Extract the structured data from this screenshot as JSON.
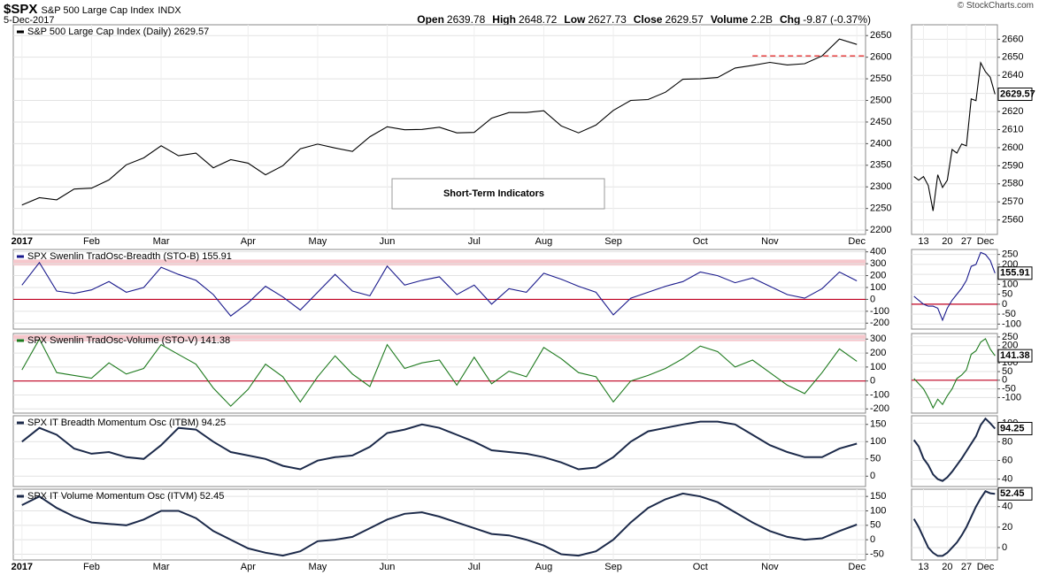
{
  "header": {
    "symbol": "$SPX",
    "name": "S&P 500 Large Cap Index",
    "exchange": "INDX",
    "date": "5-Dec-2017",
    "quote": [
      {
        "label": "Open",
        "value": 2639.78
      },
      {
        "label": "High",
        "value": 2648.72
      },
      {
        "label": "Low",
        "value": 2627.73
      },
      {
        "label": "Close",
        "value": 2629.57
      },
      {
        "label": "Volume",
        "value": "2.2B"
      },
      {
        "label": "Chg",
        "value": "-9.87 (-0.37%)"
      }
    ],
    "credit": "© StockCharts.com"
  },
  "chart_data": [
    {
      "type": "line",
      "title": "S&P 500 Large Cap Index (Daily) 2629.57",
      "annotation": "Short-Term Indicators",
      "color": "#000000",
      "categories": [
        "2017",
        null,
        null,
        null,
        "Feb",
        null,
        null,
        null,
        "Mar",
        null,
        null,
        null,
        null,
        "Apr",
        null,
        null,
        null,
        "May",
        null,
        null,
        null,
        "Jun",
        null,
        null,
        null,
        null,
        "Jul",
        null,
        null,
        null,
        "Aug",
        null,
        null,
        null,
        "Sep",
        null,
        null,
        null,
        null,
        "Oct",
        null,
        null,
        null,
        "Nov",
        null,
        null,
        null,
        null,
        "Dec"
      ],
      "values": [
        2258,
        2275,
        2270,
        2295,
        2297,
        2316,
        2351,
        2367,
        2395,
        2372,
        2378,
        2344,
        2363,
        2355,
        2328,
        2349,
        2388,
        2399,
        2390,
        2382,
        2416,
        2439,
        2432,
        2433,
        2438,
        2425,
        2426,
        2459,
        2472,
        2472,
        2476,
        2441,
        2425,
        2443,
        2477,
        2500,
        2502,
        2519,
        2549,
        2550,
        2553,
        2575,
        2581,
        2588,
        2582,
        2585,
        2603,
        2642,
        2629.57
      ],
      "ylim": [
        2190,
        2675
      ],
      "yticks": [
        2200,
        2250,
        2300,
        2350,
        2400,
        2450,
        2500,
        2550,
        2600,
        2650
      ],
      "grid": true,
      "hlines": [
        {
          "value": 2603,
          "color": "#dd0000",
          "dashed": true
        }
      ]
    },
    {
      "type": "line",
      "title": "SPX Swenlin TradOsc-Breadth (STO-B) 155.91",
      "color": "#1a1a8c",
      "values": [
        120,
        310,
        70,
        50,
        80,
        150,
        60,
        100,
        270,
        210,
        160,
        40,
        -140,
        -30,
        110,
        20,
        -90,
        60,
        210,
        70,
        30,
        280,
        120,
        160,
        190,
        40,
        120,
        -40,
        90,
        60,
        220,
        170,
        110,
        60,
        -130,
        10,
        60,
        110,
        150,
        230,
        200,
        140,
        180,
        110,
        40,
        10,
        90,
        230,
        155.91
      ],
      "ylim": [
        -250,
        420
      ],
      "yticks": [
        -200,
        -100,
        0,
        100,
        200,
        300,
        400
      ],
      "grid": true,
      "band": [
        285,
        335
      ],
      "hlines": [
        {
          "value": 0,
          "color": "#c00020",
          "dashed": false
        }
      ]
    },
    {
      "type": "line",
      "title": "SPX Swenlin TradOsc-Volume (STO-V) 141.38",
      "color": "#1e7a1e",
      "values": [
        80,
        300,
        60,
        40,
        20,
        130,
        50,
        90,
        260,
        190,
        120,
        -50,
        -180,
        -60,
        120,
        30,
        -150,
        30,
        180,
        50,
        -40,
        260,
        90,
        130,
        150,
        -30,
        170,
        -20,
        70,
        30,
        240,
        160,
        60,
        30,
        -150,
        0,
        40,
        90,
        160,
        250,
        210,
        100,
        150,
        60,
        -30,
        -90,
        60,
        230,
        141.38
      ],
      "ylim": [
        -230,
        340
      ],
      "yticks": [
        -200,
        -100,
        0,
        100,
        200,
        300
      ],
      "grid": true,
      "band": [
        285,
        330
      ],
      "hlines": [
        {
          "value": 0,
          "color": "#c00020",
          "dashed": false
        }
      ]
    },
    {
      "type": "line",
      "title": "SPX IT Breadth Momentum Osc (ITBM) 94.25",
      "color": "#1c2a4a",
      "values": [
        100,
        140,
        120,
        80,
        65,
        70,
        55,
        50,
        90,
        140,
        135,
        100,
        70,
        60,
        50,
        30,
        20,
        45,
        55,
        60,
        85,
        125,
        135,
        150,
        140,
        120,
        100,
        75,
        70,
        65,
        55,
        40,
        20,
        25,
        55,
        100,
        130,
        140,
        150,
        158,
        158,
        150,
        120,
        90,
        70,
        55,
        55,
        80,
        94.25
      ],
      "ylim": [
        -30,
        175
      ],
      "yticks": [
        0,
        50,
        100,
        150
      ],
      "grid": true
    },
    {
      "type": "line",
      "title": "SPX IT Volume Momentum Osc (ITVM) 52.45",
      "color": "#1c2a4a",
      "categories": [
        "2017",
        null,
        null,
        null,
        "Feb",
        null,
        null,
        null,
        "Mar",
        null,
        null,
        null,
        null,
        "Apr",
        null,
        null,
        null,
        "May",
        null,
        null,
        null,
        "Jun",
        null,
        null,
        null,
        null,
        "Jul",
        null,
        null,
        null,
        "Aug",
        null,
        null,
        null,
        "Sep",
        null,
        null,
        null,
        null,
        "Oct",
        null,
        null,
        null,
        "Nov",
        null,
        null,
        null,
        null,
        "Dec"
      ],
      "values": [
        120,
        150,
        110,
        80,
        60,
        55,
        50,
        70,
        100,
        100,
        75,
        30,
        0,
        -30,
        -45,
        -55,
        -40,
        -5,
        0,
        10,
        40,
        70,
        90,
        95,
        80,
        60,
        40,
        20,
        15,
        0,
        -20,
        -50,
        -55,
        -40,
        0,
        60,
        110,
        140,
        160,
        150,
        130,
        95,
        60,
        30,
        10,
        0,
        5,
        30,
        52.45
      ],
      "ylim": [
        -70,
        175
      ],
      "yticks": [
        -50,
        0,
        50,
        100,
        150
      ],
      "grid": true
    },
    {
      "type": "line",
      "color": "#000000",
      "last_tag": true,
      "categories": [
        null,
        null,
        "13",
        null,
        null,
        null,
        null,
        "20",
        null,
        null,
        null,
        "27",
        null,
        null,
        null,
        "Dec",
        null,
        null
      ],
      "values": [
        2584,
        2582,
        2584,
        2579,
        2565,
        2585,
        2578,
        2582,
        2599,
        2597,
        2602,
        2601,
        2627,
        2626,
        2647,
        2642,
        2639,
        2629.57
      ],
      "ylim": [
        2552,
        2668
      ],
      "yticks": [
        2560,
        2570,
        2580,
        2590,
        2600,
        2610,
        2620,
        2630,
        2640,
        2650,
        2660
      ],
      "grid": true
    },
    {
      "type": "line",
      "color": "#1a1a8c",
      "last_tag": true,
      "values": [
        40,
        20,
        0,
        -10,
        -10,
        -20,
        -80,
        -20,
        20,
        50,
        80,
        120,
        190,
        200,
        260,
        250,
        220,
        155.91
      ],
      "ylim": [
        -125,
        275
      ],
      "yticks": [
        -100,
        -50,
        0,
        50,
        100,
        150,
        200,
        250
      ],
      "grid": true,
      "hlines": [
        {
          "value": 0,
          "color": "#c00020",
          "dashed": false
        }
      ]
    },
    {
      "type": "line",
      "color": "#1e7a1e",
      "last_tag": true,
      "values": [
        10,
        -20,
        -50,
        -100,
        -160,
        -110,
        -140,
        -90,
        -50,
        10,
        30,
        60,
        150,
        170,
        220,
        240,
        180,
        141.38
      ],
      "ylim": [
        -190,
        270
      ],
      "yticks": [
        -100,
        -50,
        0,
        50,
        100,
        150,
        200,
        250
      ],
      "grid": true,
      "hlines": [
        {
          "value": 0,
          "color": "#c00020",
          "dashed": false
        }
      ]
    },
    {
      "type": "line",
      "color": "#1c2a4a",
      "last_tag": true,
      "values": [
        82,
        75,
        62,
        55,
        45,
        40,
        38,
        42,
        48,
        55,
        62,
        70,
        78,
        86,
        98,
        105,
        100,
        94.25
      ],
      "ylim": [
        32,
        108
      ],
      "yticks": [
        40,
        60,
        80,
        100
      ],
      "grid": true
    },
    {
      "type": "line",
      "color": "#1c2a4a",
      "last_tag": true,
      "categories": [
        null,
        null,
        "13",
        null,
        null,
        null,
        null,
        "20",
        null,
        null,
        null,
        "27",
        null,
        null,
        null,
        "Dec",
        null,
        null
      ],
      "values": [
        28,
        20,
        10,
        0,
        -5,
        -8,
        -8,
        -5,
        0,
        5,
        12,
        20,
        30,
        40,
        48,
        55,
        53,
        52.45
      ],
      "ylim": [
        -12,
        57
      ],
      "yticks": [
        0,
        20,
        40
      ],
      "grid": true
    }
  ]
}
